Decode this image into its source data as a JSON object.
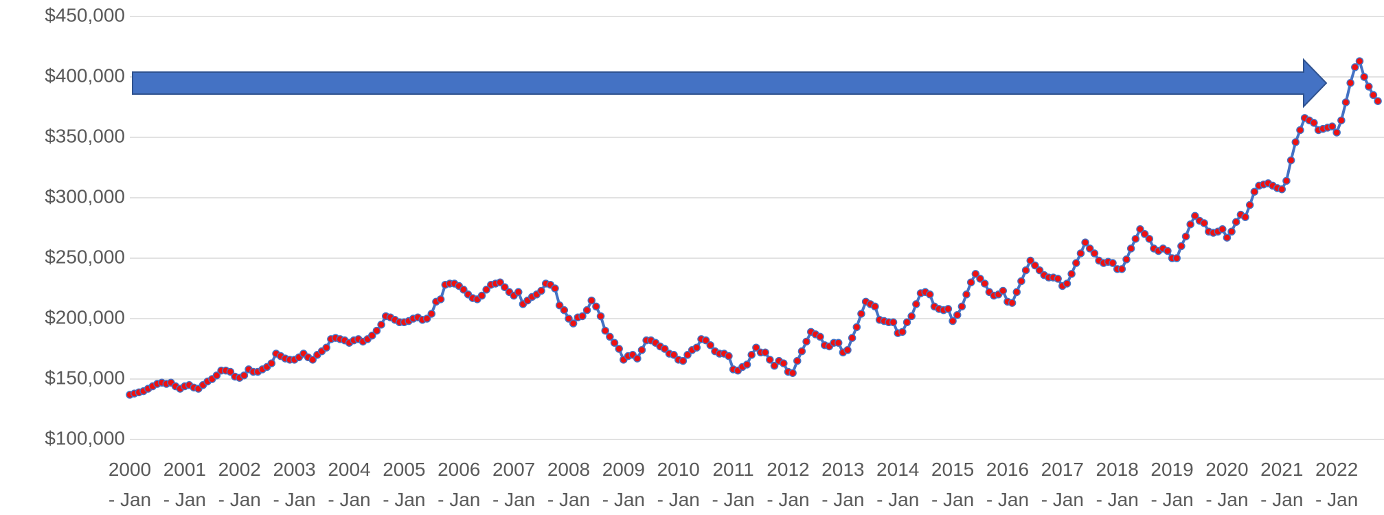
{
  "chart_data": {
    "type": "line",
    "categories": [
      "2000\n- Jan",
      null,
      null,
      null,
      null,
      null,
      null,
      null,
      null,
      null,
      null,
      null,
      "2001\n- Jan",
      null,
      null,
      null,
      null,
      null,
      null,
      null,
      null,
      null,
      null,
      null,
      "2002\n- Jan",
      null,
      null,
      null,
      null,
      null,
      null,
      null,
      null,
      null,
      null,
      null,
      "2003\n- Jan",
      null,
      null,
      null,
      null,
      null,
      null,
      null,
      null,
      null,
      null,
      null,
      "2004\n- Jan",
      null,
      null,
      null,
      null,
      null,
      null,
      null,
      null,
      null,
      null,
      null,
      "2005\n- Jan",
      null,
      null,
      null,
      null,
      null,
      null,
      null,
      null,
      null,
      null,
      null,
      "2006\n- Jan",
      null,
      null,
      null,
      null,
      null,
      null,
      null,
      null,
      null,
      null,
      null,
      "2007\n- Jan",
      null,
      null,
      null,
      null,
      null,
      null,
      null,
      null,
      null,
      null,
      null,
      "2008\n- Jan",
      null,
      null,
      null,
      null,
      null,
      null,
      null,
      null,
      null,
      null,
      null,
      "2009\n- Jan",
      null,
      null,
      null,
      null,
      null,
      null,
      null,
      null,
      null,
      null,
      null,
      "2010\n- Jan",
      null,
      null,
      null,
      null,
      null,
      null,
      null,
      null,
      null,
      null,
      null,
      "2011\n- Jan",
      null,
      null,
      null,
      null,
      null,
      null,
      null,
      null,
      null,
      null,
      null,
      "2012\n- Jan",
      null,
      null,
      null,
      null,
      null,
      null,
      null,
      null,
      null,
      null,
      null,
      "2013\n- Jan",
      null,
      null,
      null,
      null,
      null,
      null,
      null,
      null,
      null,
      null,
      null,
      "2014\n- Jan",
      null,
      null,
      null,
      null,
      null,
      null,
      null,
      null,
      null,
      null,
      null,
      "2015\n- Jan",
      null,
      null,
      null,
      null,
      null,
      null,
      null,
      null,
      null,
      null,
      null,
      "2016\n- Jan",
      null,
      null,
      null,
      null,
      null,
      null,
      null,
      null,
      null,
      null,
      null,
      "2017\n- Jan",
      null,
      null,
      null,
      null,
      null,
      null,
      null,
      null,
      null,
      null,
      null,
      "2018\n- Jan",
      null,
      null,
      null,
      null,
      null,
      null,
      null,
      null,
      null,
      null,
      null,
      "2019\n- Jan",
      null,
      null,
      null,
      null,
      null,
      null,
      null,
      null,
      null,
      null,
      null,
      "2020\n- Jan",
      null,
      null,
      null,
      null,
      null,
      null,
      null,
      null,
      null,
      null,
      null,
      "2021\n- Jan",
      null,
      null,
      null,
      null,
      null,
      null,
      null,
      null,
      null,
      null,
      null,
      "2022\n- Jan",
      null,
      null,
      null,
      null,
      null,
      null,
      null,
      null,
      null
    ],
    "series": [
      {
        "color": "#4472c4",
        "marker_color": "#ee1111",
        "values": [
          137000,
          138000,
          139000,
          140000,
          142000,
          144000,
          146000,
          147000,
          146000,
          147000,
          144000,
          142000,
          144000,
          145000,
          143000,
          142000,
          145000,
          148000,
          150000,
          153000,
          157000,
          157000,
          156000,
          152000,
          151000,
          153000,
          158000,
          156000,
          156000,
          158000,
          160000,
          163000,
          171000,
          169000,
          167000,
          166000,
          166000,
          168000,
          171000,
          168000,
          166000,
          170000,
          173000,
          176000,
          183000,
          184000,
          183000,
          182000,
          180000,
          182000,
          183000,
          181000,
          183000,
          186000,
          190000,
          195000,
          202000,
          201000,
          199000,
          197000,
          197000,
          198000,
          200000,
          201000,
          199000,
          200000,
          204000,
          214000,
          216000,
          228000,
          229000,
          229000,
          227000,
          224000,
          220000,
          217000,
          216000,
          219000,
          224000,
          228000,
          229000,
          230000,
          226000,
          222000,
          219000,
          222000,
          212000,
          215000,
          218000,
          220000,
          223000,
          229000,
          228000,
          225000,
          211000,
          207000,
          200000,
          196000,
          201000,
          202000,
          207000,
          215000,
          210000,
          202000,
          190000,
          185000,
          180000,
          175000,
          166000,
          169000,
          170000,
          167000,
          174000,
          182000,
          182000,
          180000,
          177000,
          175000,
          171000,
          170000,
          166000,
          165000,
          170000,
          174000,
          176000,
          183000,
          182000,
          178000,
          173000,
          171000,
          171000,
          169000,
          158000,
          157000,
          160000,
          162000,
          170000,
          176000,
          172000,
          172000,
          166000,
          161000,
          165000,
          163000,
          156000,
          155000,
          165000,
          173000,
          181000,
          189000,
          187000,
          185000,
          178000,
          177000,
          180000,
          180000,
          172000,
          174000,
          184000,
          193000,
          204000,
          214000,
          212000,
          210000,
          199000,
          198000,
          197000,
          197000,
          188000,
          189000,
          197000,
          202000,
          212000,
          221000,
          222000,
          220000,
          210000,
          208000,
          207000,
          208000,
          198000,
          203000,
          210000,
          220000,
          230000,
          237000,
          233000,
          229000,
          222000,
          219000,
          220000,
          223000,
          214000,
          213000,
          222000,
          231000,
          240000,
          248000,
          244000,
          240000,
          236000,
          234000,
          234000,
          233000,
          227000,
          229000,
          237000,
          246000,
          254000,
          263000,
          258000,
          254000,
          248000,
          246000,
          247000,
          246000,
          241000,
          241000,
          249000,
          258000,
          266000,
          274000,
          270000,
          266000,
          258000,
          256000,
          258000,
          256000,
          250000,
          250000,
          260000,
          268000,
          278000,
          285000,
          281000,
          279000,
          272000,
          271000,
          272000,
          274000,
          267000,
          272000,
          280000,
          286000,
          284000,
          294000,
          305000,
          310000,
          311000,
          312000,
          310000,
          308000,
          307000,
          314000,
          331000,
          346000,
          356000,
          366000,
          364000,
          362000,
          356000,
          357000,
          358000,
          359000,
          354000,
          364000,
          379000,
          395000,
          408000,
          413000,
          400000,
          392000,
          385000,
          380000
        ]
      }
    ],
    "ylim": [
      100000,
      450000
    ],
    "yticks": [
      {
        "value": 100000,
        "label": "$100,000"
      },
      {
        "value": 150000,
        "label": "$150,000"
      },
      {
        "value": 200000,
        "label": "$200,000"
      },
      {
        "value": 250000,
        "label": "$250,000"
      },
      {
        "value": 300000,
        "label": "$300,000"
      },
      {
        "value": 350000,
        "label": "$350,000"
      },
      {
        "value": 400000,
        "label": "$400,000"
      },
      {
        "value": 450000,
        "label": "$450,000"
      }
    ],
    "grid": true
  }
}
